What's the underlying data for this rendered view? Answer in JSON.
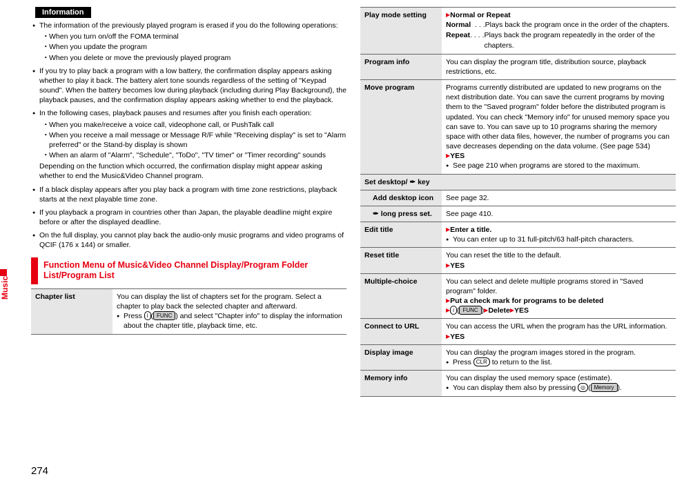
{
  "sideTab": "Music",
  "pageNumber": "274",
  "infoBadge": "Information",
  "info": {
    "items": [
      {
        "text": "The information of the previously played program is erased if you do the following operations:",
        "sub": [
          "When you turn on/off the FOMA terminal",
          "When you update the program",
          "When you delete or move the previously played program"
        ]
      },
      {
        "text": "If you try to play back a program with a low battery, the confirmation display appears asking whether to play it back. The battery alert tone sounds regardless of the setting of \"Keypad sound\". When the battery becomes low during playback (including during Play Background), the playback pauses, and the confirmation display appears asking whether to end the playback."
      },
      {
        "text": "In the following cases, playback pauses and resumes after you finish each operation:",
        "sub": [
          "When you make/receive a voice call, videophone call, or PushTalk call",
          "When you receive a mail message or Message R/F while \"Receiving display\" is set to \"Alarm preferred\" or the Stand-by display is shown",
          "When an alarm of \"Alarm\", \"Schedule\", \"ToDo\", \"TV timer\" or \"Timer recording\" sounds"
        ],
        "after": "Depending on the function which occurred, the confirmation display might appear asking whether to end the Music&Video Channel program."
      },
      {
        "text": "If a black display appears after you play back a program with time zone restrictions, playback starts at the next playable time zone."
      },
      {
        "text": "If you playback a program in countries other than Japan, the playable deadline might expire before or after the displayed deadline."
      },
      {
        "text": "On the full display, you cannot play back the audio-only music programs and video programs of QCIF (176 x 144) or smaller."
      }
    ]
  },
  "sectionHeader": "Function Menu of Music&Video Channel Display/Program Folder List/Program List",
  "leftTable": {
    "rows": [
      {
        "label": "Chapter list",
        "desc": "You can display the list of chapters set for the program. Select a chapter to play back the selected chapter and afterward.",
        "bullet": "Press ",
        "keycap1": "i",
        "soft1": "FUNC",
        "bullet_after": " and select \"Chapter info\" to display the information about the chapter title, playback time, etc."
      }
    ]
  },
  "rightTable": {
    "playMode": {
      "label": "Play mode setting",
      "lead": "Normal or Repeat",
      "normal_term": "Normal",
      "normal_dots": "  . . .",
      "normal_desc": "Plays back the program once in the order of the chapters.",
      "repeat_term": "Repeat",
      "repeat_dots": ". . . .",
      "repeat_desc": "Plays back the program repeatedly in the order of the chapters."
    },
    "programInfo": {
      "label": "Program info",
      "desc": "You can display the program title, distribution source, playback restrictions, etc."
    },
    "moveProgram": {
      "label": "Move program",
      "desc": "Programs currently distributed are updated to new programs on the next distribution date. You can save the current programs by moving them to the \"Saved program\" folder before the distributed program is updated. You can check \"Memory info\" for unused memory space you can save to. You can save up to 10 programs sharing the memory space with other data files, however, the number of programs you can save decreases depending on the data volume. (See page 534)",
      "yes": "YES",
      "note": "See page 210 when programs are stored to the maximum."
    },
    "setDesktop": {
      "label_a": "Set desktop/ ",
      "label_b": " key",
      "addIcon": {
        "label": "Add desktop icon",
        "desc": "See page 32."
      },
      "longPress": {
        "label_b": " long press set.",
        "desc": "See page 410."
      }
    },
    "editTitle": {
      "label": "Edit title",
      "lead": "Enter a title.",
      "note": "You can enter up to 31 full-pitch/63 half-pitch characters."
    },
    "resetTitle": {
      "label": "Reset title",
      "desc": "You can reset the title to the default.",
      "yes": "YES"
    },
    "multipleChoice": {
      "label": "Multiple-choice",
      "desc": "You can select and delete multiple programs stored in \"Saved program\" folder.",
      "step1": "Put a check mark for programs to be deleted",
      "keycap": "i",
      "soft": "FUNC",
      "step2a": "Delete",
      "step2b": "YES"
    },
    "connectUrl": {
      "label": "Connect to URL",
      "desc": "You can access the URL when the program has the URL information.",
      "yes": "YES"
    },
    "displayImage": {
      "label": "Display image",
      "desc": "You can display the program images stored in the program.",
      "note_pre": "Press ",
      "key": "CLR",
      "note_post": " to return to the list."
    },
    "memoryInfo": {
      "label": "Memory info",
      "desc": "You can display the used memory space (estimate).",
      "note_pre": "You can display them also by pressing ",
      "key": "◎",
      "soft": "Memory",
      "note_post": "."
    }
  }
}
